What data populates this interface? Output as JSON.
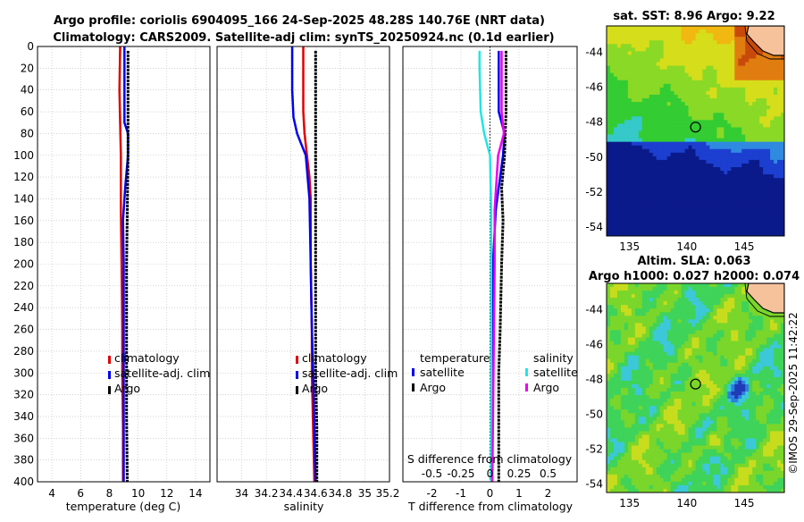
{
  "title_line1": "Argo profile: coriolis 6904095_166 24-Sep-2025 48.28S 140.76E (NRT data)",
  "title_line2": "Climatology: CARS2009. Satellite-adj clim: synTS_20250924.nc (0.1d earlier)",
  "colors": {
    "climatology": "#e00000",
    "satellite": "#0000ee",
    "argo": "#000000",
    "salinity_satellite": "#22e5e5",
    "salinity_argo": "#ee00ee",
    "grid": "#b8b8b8",
    "land": "#f6c29c"
  },
  "chart_data": [
    {
      "type": "line",
      "name": "temperature-panel",
      "xlabel": "temperature (deg C)",
      "ylabel": "",
      "xlim": [
        3,
        15
      ],
      "ylim": [
        0,
        400
      ],
      "y_inverted": true,
      "x_ticks": [
        "4",
        "6",
        "8",
        "10",
        "12",
        "14"
      ],
      "x_tick_values": [
        4,
        6,
        8,
        10,
        12,
        14
      ],
      "y_ticks": [
        "0",
        "20",
        "40",
        "60",
        "80",
        "100",
        "120",
        "140",
        "160",
        "180",
        "200",
        "220",
        "240",
        "260",
        "280",
        "300",
        "320",
        "340",
        "360",
        "380",
        "400"
      ],
      "y_tick_values": [
        0,
        20,
        40,
        60,
        80,
        100,
        120,
        140,
        160,
        180,
        200,
        220,
        240,
        260,
        280,
        300,
        320,
        340,
        360,
        380,
        400
      ],
      "grid": true,
      "legend": [
        "climatology",
        "satellite-adj. clim",
        "Argo"
      ],
      "legend_position": "lower-right",
      "series": [
        {
          "name": "climatology",
          "color_key": "climatology",
          "depth": [
            0,
            40,
            70,
            100,
            150,
            200,
            260,
            300,
            350,
            400
          ],
          "values": [
            8.75,
            8.7,
            8.75,
            8.8,
            8.8,
            8.85,
            8.9,
            8.9,
            8.95,
            8.95
          ]
        },
        {
          "name": "satellite-adj. clim",
          "color_key": "satellite",
          "depth": [
            0,
            40,
            70,
            80,
            100,
            130,
            160,
            200,
            260,
            300,
            350,
            400
          ],
          "values": [
            9.05,
            9.05,
            9.05,
            9.3,
            9.3,
            9.1,
            8.95,
            9.0,
            9.0,
            9.0,
            9.0,
            9.0
          ]
        },
        {
          "name": "Argo",
          "color_key": "argo",
          "depth": [
            4,
            40,
            80,
            100,
            150,
            200,
            260,
            300,
            340,
            400
          ],
          "values": [
            9.3,
            9.3,
            9.3,
            9.3,
            9.25,
            9.2,
            9.2,
            9.2,
            9.2,
            9.25
          ]
        }
      ]
    },
    {
      "type": "line",
      "name": "salinity-panel",
      "xlabel": "salinity",
      "xlim": [
        33.8,
        35.2
      ],
      "ylim": [
        0,
        400
      ],
      "y_inverted": true,
      "x_ticks": [
        "34",
        "34.2",
        "34.4",
        "34.6",
        "34.8",
        "35",
        "35.2"
      ],
      "x_tick_values": [
        34,
        34.2,
        34.4,
        34.6,
        34.8,
        35,
        35.2
      ],
      "y_tick_values": [
        0,
        20,
        40,
        60,
        80,
        100,
        120,
        140,
        160,
        180,
        200,
        220,
        240,
        260,
        280,
        300,
        320,
        340,
        360,
        380,
        400
      ],
      "grid": true,
      "legend": [
        "climatology",
        "satellite-adj. clim",
        "Argo"
      ],
      "legend_position": "lower-right",
      "series": [
        {
          "name": "climatology",
          "color_key": "climatology",
          "depth": [
            0,
            60,
            80,
            100,
            120,
            140,
            200,
            260,
            300,
            350,
            400
          ],
          "values": [
            34.5,
            34.5,
            34.51,
            34.53,
            34.55,
            34.56,
            34.56,
            34.57,
            34.57,
            34.58,
            34.59
          ]
        },
        {
          "name": "satellite-adj. clim",
          "color_key": "satellite",
          "depth": [
            0,
            40,
            65,
            80,
            100,
            140,
            200,
            260,
            300,
            350,
            400
          ],
          "values": [
            34.41,
            34.41,
            34.42,
            34.45,
            34.52,
            34.55,
            34.56,
            34.57,
            34.58,
            34.59,
            34.6
          ]
        },
        {
          "name": "Argo",
          "color_key": "argo",
          "depth": [
            4,
            60,
            100,
            150,
            200,
            260,
            300,
            350,
            400
          ],
          "values": [
            34.6,
            34.6,
            34.6,
            34.6,
            34.6,
            34.6,
            34.6,
            34.61,
            34.61
          ]
        }
      ]
    },
    {
      "type": "line",
      "name": "difference-panel",
      "xlabel": "T difference from climatology",
      "x2label": "S difference from climatology",
      "xlim": [
        -3,
        3
      ],
      "ylim": [
        0,
        400
      ],
      "y_inverted": true,
      "x_ticks": [
        "-2",
        "-1",
        "0",
        "1",
        "2"
      ],
      "x_tick_values": [
        -2,
        -1,
        0,
        1,
        2
      ],
      "x2_ticks": [
        "-0.5",
        "-0.25",
        "0",
        "0.25",
        "0.5"
      ],
      "x2_tick_values": [
        -0.5,
        -0.25,
        0,
        0.25,
        0.5
      ],
      "x2lim": [
        -0.75,
        0.75
      ],
      "y_tick_values": [
        0,
        20,
        40,
        60,
        80,
        100,
        120,
        140,
        160,
        180,
        200,
        220,
        240,
        260,
        280,
        300,
        320,
        340,
        360,
        380,
        400
      ],
      "grid": true,
      "legend_temperature_heading": "temperature",
      "legend_salinity_heading": "salinity",
      "legend_temperature": [
        "satellite",
        "Argo"
      ],
      "legend_salinity": [
        "satellite",
        "Argo"
      ],
      "series": [
        {
          "name": "T satellite",
          "color_key": "satellite",
          "axis": "T",
          "depth": [
            4,
            60,
            80,
            100,
            150,
            200,
            300,
            400
          ],
          "values": [
            0.3,
            0.3,
            0.5,
            0.45,
            0.2,
            0.1,
            0.05,
            0.05
          ]
        },
        {
          "name": "T Argo",
          "color_key": "argo",
          "axis": "T",
          "depth": [
            4,
            60,
            100,
            130,
            160,
            200,
            260,
            300,
            350,
            400
          ],
          "values": [
            0.55,
            0.55,
            0.5,
            0.4,
            0.45,
            0.4,
            0.35,
            0.3,
            0.3,
            0.3
          ]
        },
        {
          "name": "S satellite",
          "color_key": "salinity_satellite",
          "axis": "S",
          "depth": [
            4,
            20,
            60,
            80,
            100,
            150,
            200,
            300,
            400
          ],
          "values": [
            -0.09,
            -0.09,
            -0.08,
            -0.05,
            0.0,
            0.01,
            0.01,
            0.01,
            0.01
          ]
        },
        {
          "name": "S Argo",
          "color_key": "salinity_argo",
          "axis": "S",
          "depth": [
            4,
            60,
            80,
            100,
            150,
            200,
            300,
            400
          ],
          "values": [
            0.1,
            0.1,
            0.12,
            0.07,
            0.04,
            0.04,
            0.03,
            0.02
          ]
        }
      ]
    }
  ],
  "maps": {
    "sst": {
      "title": "sat. SST: 8.96 Argo: 9.22",
      "x_ticks": [
        "135",
        "140",
        "145"
      ],
      "x_tick_values": [
        135,
        140,
        145
      ],
      "y_ticks": [
        "-44",
        "-46",
        "-48",
        "-50",
        "-52",
        "-54"
      ],
      "y_tick_values": [
        -44,
        -46,
        -48,
        -50,
        -52,
        -54
      ],
      "lon_range": [
        133,
        148.5
      ],
      "lat_range": [
        -54.5,
        -42.5
      ],
      "profile_lon": 140.76,
      "profile_lat": -48.28,
      "palette": [
        "#0b1a8a",
        "#1c3fd0",
        "#2f8ae0",
        "#35c9c9",
        "#33cc33",
        "#8ad926",
        "#d6dd1a",
        "#f0b810",
        "#e07d10",
        "#c84a0a"
      ]
    },
    "sla": {
      "title1": "Altim. SLA: 0.063",
      "title2": "Argo h1000: 0.027 h2000: 0.074",
      "x_ticks": [
        "135",
        "140",
        "145"
      ],
      "x_tick_values": [
        135,
        140,
        145
      ],
      "y_ticks": [
        "-44",
        "-46",
        "-48",
        "-50",
        "-52",
        "-54"
      ],
      "y_tick_values": [
        -44,
        -46,
        -48,
        -50,
        -52,
        -54
      ],
      "lon_range": [
        133,
        148.5
      ],
      "lat_range": [
        -54.5,
        -42.5
      ],
      "profile_lon": 140.76,
      "profile_lat": -48.28,
      "palette": [
        "#1f3bb5",
        "#2d7fe0",
        "#3cc8d8",
        "#3fd35a",
        "#7ad62a",
        "#c8dc1e",
        "#f0c214",
        "#f08a14"
      ]
    }
  },
  "timestamp": "©IMOS 29-Sep-2025 11:42:22"
}
